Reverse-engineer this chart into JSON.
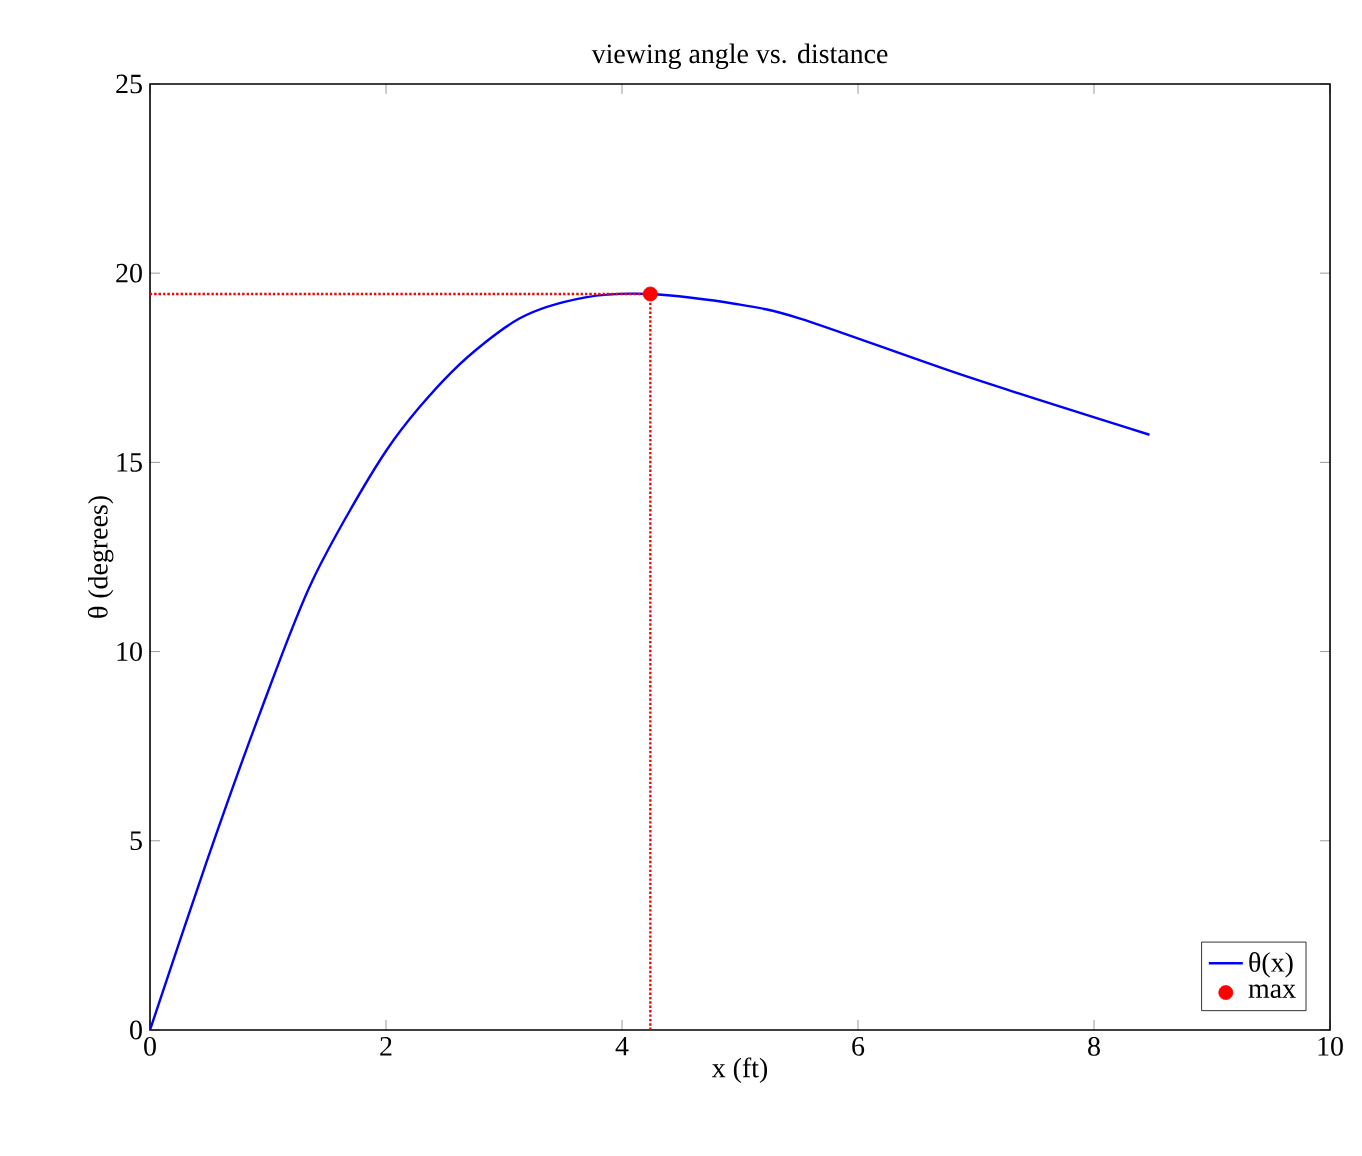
{
  "chart_data": {
    "type": "line",
    "title": "viewing angle vs. distance",
    "xlabel": "x  (ft)",
    "ylabel": "θ  (degrees)",
    "xlim": [
      0,
      10
    ],
    "ylim": [
      0,
      25
    ],
    "xticks": [
      0,
      2,
      4,
      6,
      8,
      10
    ],
    "yticks": [
      0,
      5,
      10,
      15,
      20,
      25
    ],
    "legend": "bottom right",
    "series": [
      {
        "name": "θ(x)",
        "color": "#0000ff",
        "line_style": "solid",
        "x": [
          0,
          0.48,
          0.93,
          1.38,
          2,
          2.56,
          3.13,
          3.69,
          4.24,
          4.94,
          5.51,
          6.92,
          8.47
        ],
        "values": [
          0,
          4.45,
          8.36,
          11.9,
          15.3,
          17.4,
          18.8,
          19.36,
          19.45,
          19.2,
          18.8,
          17.27,
          15.73
        ]
      },
      {
        "type": "scatter",
        "name": "max",
        "color": "#ff0000",
        "marker": "circle",
        "x": [
          4.24
        ],
        "values": [
          19.45
        ]
      },
      {
        "type": "line",
        "color": "#ff0000",
        "line_style": "dotted",
        "x": [
          0,
          4.24
        ],
        "values": [
          19.45,
          19.45
        ]
      },
      {
        "type": "line",
        "color": "#ff0000",
        "line_style": "dotted",
        "x": [
          4.24,
          4.24
        ],
        "values": [
          0,
          19.45
        ]
      }
    ]
  }
}
